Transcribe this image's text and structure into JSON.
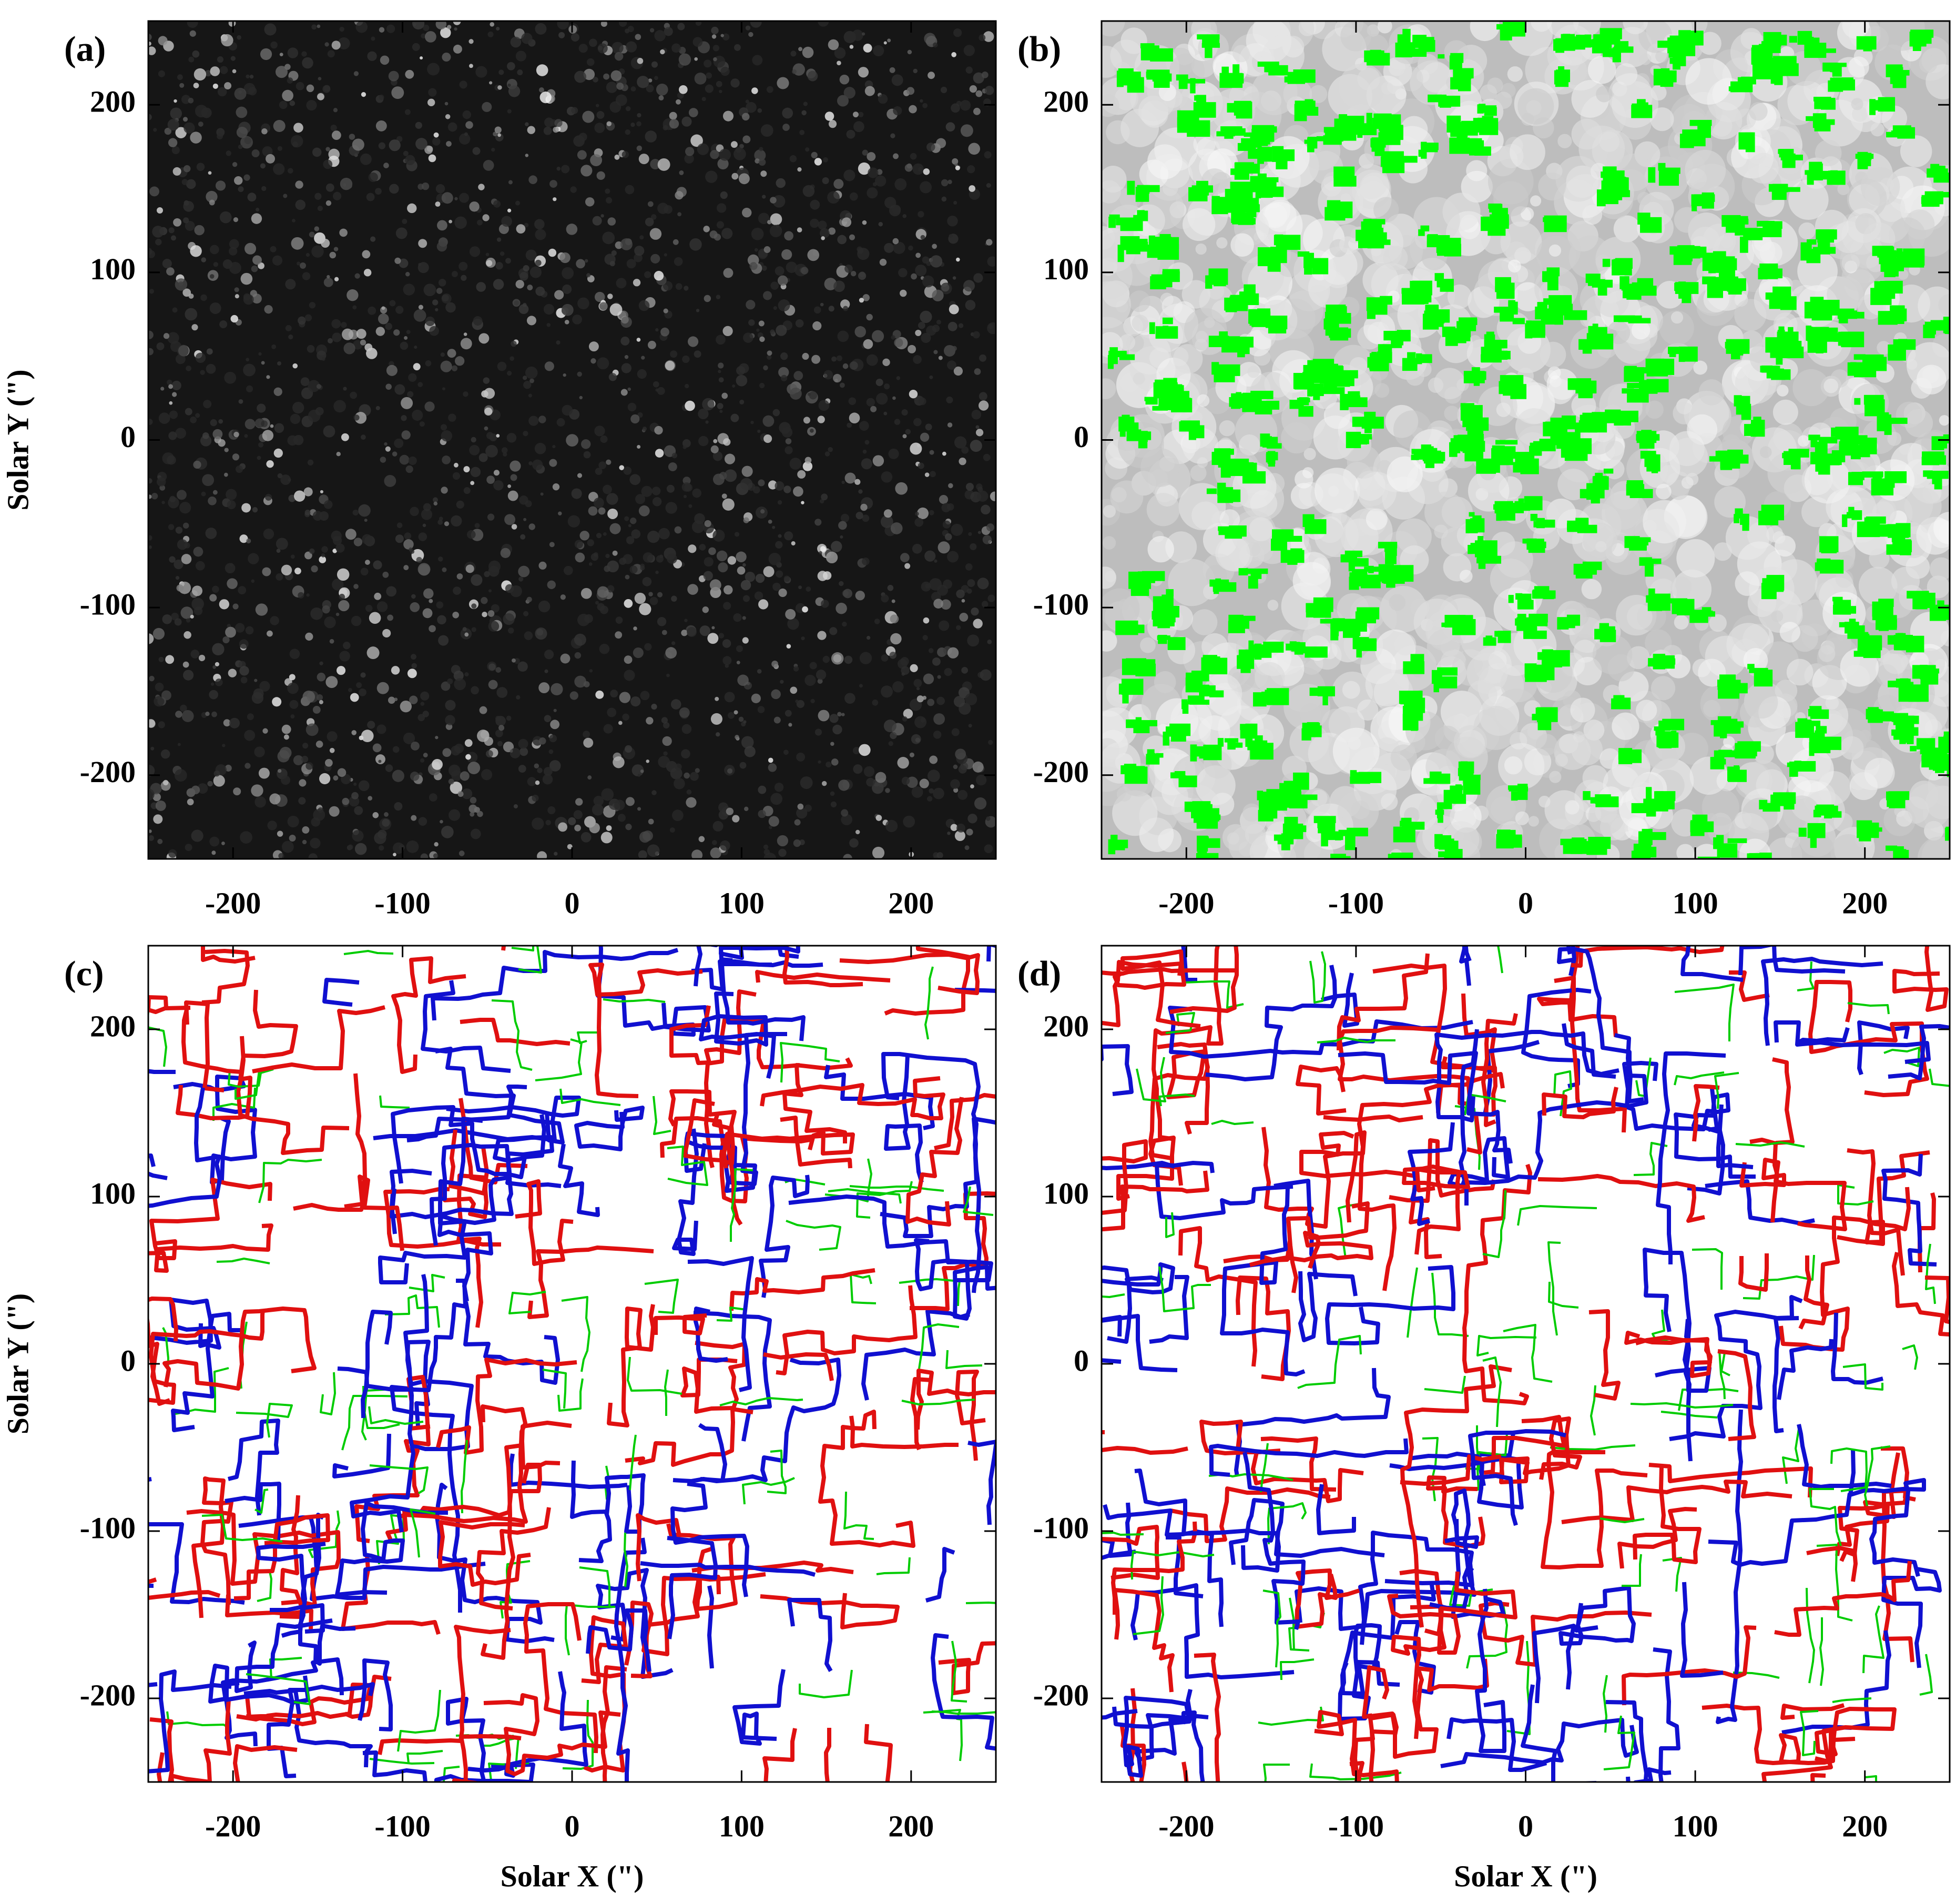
{
  "chart_data": [
    {
      "type": "image",
      "panel_label": "(a)",
      "style": "grayscale",
      "xlim": [
        -250,
        250
      ],
      "ylim": [
        -250,
        250
      ],
      "xticks": [
        -200,
        -100,
        0,
        100,
        200
      ],
      "yticks": [
        -200,
        -100,
        0,
        100,
        200
      ],
      "y_label": "Solar Y (\")"
    },
    {
      "type": "image",
      "panel_label": "(b)",
      "style": "overlay",
      "color": "#00ff00",
      "xlim": [
        -250,
        250
      ],
      "ylim": [
        -250,
        250
      ],
      "xticks": [
        -200,
        -100,
        0,
        100,
        200
      ],
      "yticks": [
        -200,
        -100,
        0,
        100,
        200
      ]
    },
    {
      "type": "image",
      "panel_label": "(c)",
      "style": "contours",
      "colors": [
        "#e01010",
        "#1010d0",
        "#00cc00"
      ],
      "xlim": [
        -250,
        250
      ],
      "ylim": [
        -250,
        250
      ],
      "xticks": [
        -200,
        -100,
        0,
        100,
        200
      ],
      "yticks": [
        -200,
        -100,
        0,
        100,
        200
      ],
      "x_label": "Solar X (\")",
      "y_label": "Solar Y (\")"
    },
    {
      "type": "image",
      "panel_label": "(d)",
      "style": "contours",
      "colors": [
        "#e01010",
        "#1010d0",
        "#00cc00"
      ],
      "xlim": [
        -250,
        250
      ],
      "ylim": [
        -250,
        250
      ],
      "xticks": [
        -200,
        -100,
        0,
        100,
        200
      ],
      "yticks": [
        -200,
        -100,
        0,
        100,
        200
      ],
      "x_label": "Solar X (\")"
    }
  ]
}
